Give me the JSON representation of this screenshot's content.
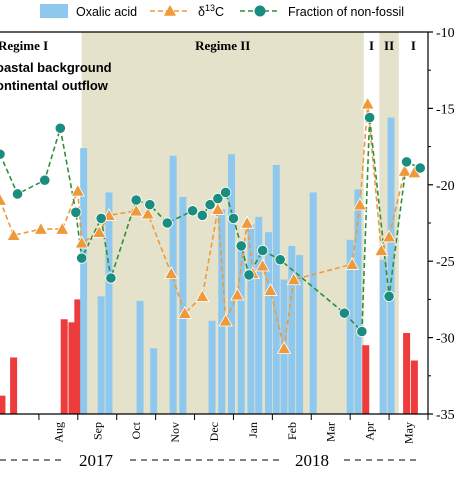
{
  "chart_data": {
    "type": "bar",
    "legend": {
      "placement": "top",
      "entries": [
        {
          "key": "oxalic",
          "label": "Oxalic acid",
          "color": "#8ec8ee"
        },
        {
          "key": "d13c",
          "label": "δ13C",
          "label_main": "δ",
          "label_sup": "13",
          "label_tail": "C",
          "color": "#ef9a3a"
        },
        {
          "key": "fnf",
          "label": "Fraction of non-fossil",
          "color": "#1a8c80",
          "line_color": "#2f8f3a"
        }
      ]
    },
    "y_right": {
      "ticks": [
        -10,
        -15,
        -20,
        -25,
        -30,
        -35
      ],
      "labels": [
        "-10",
        "-15",
        "-20",
        "-25",
        "-30",
        "-35"
      ],
      "ylim": [
        -35,
        -10
      ]
    },
    "months": [
      "Aug",
      "Sep",
      "Oct",
      "Nov",
      "Dec",
      "Jan",
      "Feb",
      "Mar",
      "Apr",
      "May"
    ],
    "years": [
      "2017",
      "2018"
    ],
    "regimes": [
      {
        "label": "Regime I",
        "start_month": 6.0,
        "end_month": 8.1,
        "shaded": false
      },
      {
        "label": "Regime II",
        "start_month": 8.1,
        "end_month": 15.35,
        "shaded": true
      },
      {
        "label": "I",
        "start_month": 15.35,
        "end_month": 15.75,
        "shaded": false
      },
      {
        "label": "II",
        "start_month": 15.75,
        "end_month": 16.25,
        "shaded": true
      },
      {
        "label": "I",
        "start_month": 16.25,
        "end_month": 17.0,
        "shaded": false
      }
    ],
    "annotations": [
      "oastal background",
      "ontinental outflow"
    ],
    "bars_red": [
      {
        "x": 6.05,
        "y": -33.8
      },
      {
        "x": 6.35,
        "y": -31.3
      },
      {
        "x": 7.65,
        "y": -28.8
      },
      {
        "x": 7.85,
        "y": -29.0
      },
      {
        "x": 8.0,
        "y": -27.5
      },
      {
        "x": 15.4,
        "y": -30.5
      },
      {
        "x": 16.45,
        "y": -29.7
      },
      {
        "x": 16.65,
        "y": -31.5
      }
    ],
    "bars_blue": [
      {
        "x": 8.15,
        "y": -17.6
      },
      {
        "x": 8.6,
        "y": -27.3
      },
      {
        "x": 8.8,
        "y": -20.5
      },
      {
        "x": 9.6,
        "y": -27.6
      },
      {
        "x": 9.95,
        "y": -30.7
      },
      {
        "x": 10.45,
        "y": -18.1
      },
      {
        "x": 10.7,
        "y": -20.8
      },
      {
        "x": 11.45,
        "y": -28.9
      },
      {
        "x": 11.7,
        "y": -21.6
      },
      {
        "x": 11.95,
        "y": -18.0
      },
      {
        "x": 12.2,
        "y": -23.8
      },
      {
        "x": 12.45,
        "y": -22.6
      },
      {
        "x": 12.65,
        "y": -22.1
      },
      {
        "x": 12.9,
        "y": -23.1
      },
      {
        "x": 13.1,
        "y": -18.7
      },
      {
        "x": 13.3,
        "y": -26.2
      },
      {
        "x": 13.5,
        "y": -24.0
      },
      {
        "x": 13.7,
        "y": -24.6
      },
      {
        "x": 14.05,
        "y": -20.5
      },
      {
        "x": 15.0,
        "y": -23.6
      },
      {
        "x": 15.2,
        "y": -20.3
      },
      {
        "x": 15.85,
        "y": -24.9
      },
      {
        "x": 16.05,
        "y": -15.6
      }
    ],
    "d13c": [
      {
        "x": 6.0,
        "y": -21.0
      },
      {
        "x": 6.35,
        "y": -23.3
      },
      {
        "x": 7.05,
        "y": -22.9
      },
      {
        "x": 7.6,
        "y": -22.9
      },
      {
        "x": 8.0,
        "y": -20.4
      },
      {
        "x": 8.1,
        "y": -23.8
      },
      {
        "x": 8.55,
        "y": -23.1
      },
      {
        "x": 8.8,
        "y": -22.0
      },
      {
        "x": 9.5,
        "y": -21.7
      },
      {
        "x": 9.8,
        "y": -21.9
      },
      {
        "x": 10.4,
        "y": -25.8
      },
      {
        "x": 10.75,
        "y": -28.4
      },
      {
        "x": 11.2,
        "y": -27.3
      },
      {
        "x": 11.6,
        "y": -21.6
      },
      {
        "x": 11.8,
        "y": -28.9
      },
      {
        "x": 12.1,
        "y": -27.2
      },
      {
        "x": 12.35,
        "y": -22.5
      },
      {
        "x": 12.5,
        "y": -25.8
      },
      {
        "x": 12.75,
        "y": -25.3
      },
      {
        "x": 12.95,
        "y": -26.9
      },
      {
        "x": 13.3,
        "y": -30.7
      },
      {
        "x": 13.55,
        "y": -26.2
      },
      {
        "x": 15.05,
        "y": -25.2
      },
      {
        "x": 15.25,
        "y": -21.3
      },
      {
        "x": 15.45,
        "y": -14.7
      },
      {
        "x": 15.8,
        "y": -24.3
      },
      {
        "x": 16.0,
        "y": -23.4
      },
      {
        "x": 16.4,
        "y": -19.1
      },
      {
        "x": 16.65,
        "y": -19.2
      }
    ],
    "fnf": [
      {
        "x": 6.0,
        "y": -18.0
      },
      {
        "x": 6.45,
        "y": -20.6
      },
      {
        "x": 7.15,
        "y": -19.7
      },
      {
        "x": 7.55,
        "y": -16.3
      },
      {
        "x": 7.95,
        "y": -21.8
      },
      {
        "x": 8.1,
        "y": -24.8
      },
      {
        "x": 8.6,
        "y": -22.2
      },
      {
        "x": 8.85,
        "y": -26.1
      },
      {
        "x": 9.5,
        "y": -21.0
      },
      {
        "x": 9.85,
        "y": -21.3
      },
      {
        "x": 10.3,
        "y": -22.5
      },
      {
        "x": 10.95,
        "y": -21.7
      },
      {
        "x": 11.2,
        "y": -22.0
      },
      {
        "x": 11.4,
        "y": -21.3
      },
      {
        "x": 11.6,
        "y": -20.9
      },
      {
        "x": 11.8,
        "y": -20.5
      },
      {
        "x": 12.0,
        "y": -22.2
      },
      {
        "x": 12.2,
        "y": -24.0
      },
      {
        "x": 12.4,
        "y": -25.9
      },
      {
        "x": 12.75,
        "y": -24.3
      },
      {
        "x": 13.2,
        "y": -24.9
      },
      {
        "x": 14.85,
        "y": -28.4
      },
      {
        "x": 15.3,
        "y": -29.6
      },
      {
        "x": 15.5,
        "y": -15.6
      },
      {
        "x": 16.0,
        "y": -27.3
      },
      {
        "x": 16.45,
        "y": -18.5
      },
      {
        "x": 16.8,
        "y": -18.9
      }
    ]
  }
}
